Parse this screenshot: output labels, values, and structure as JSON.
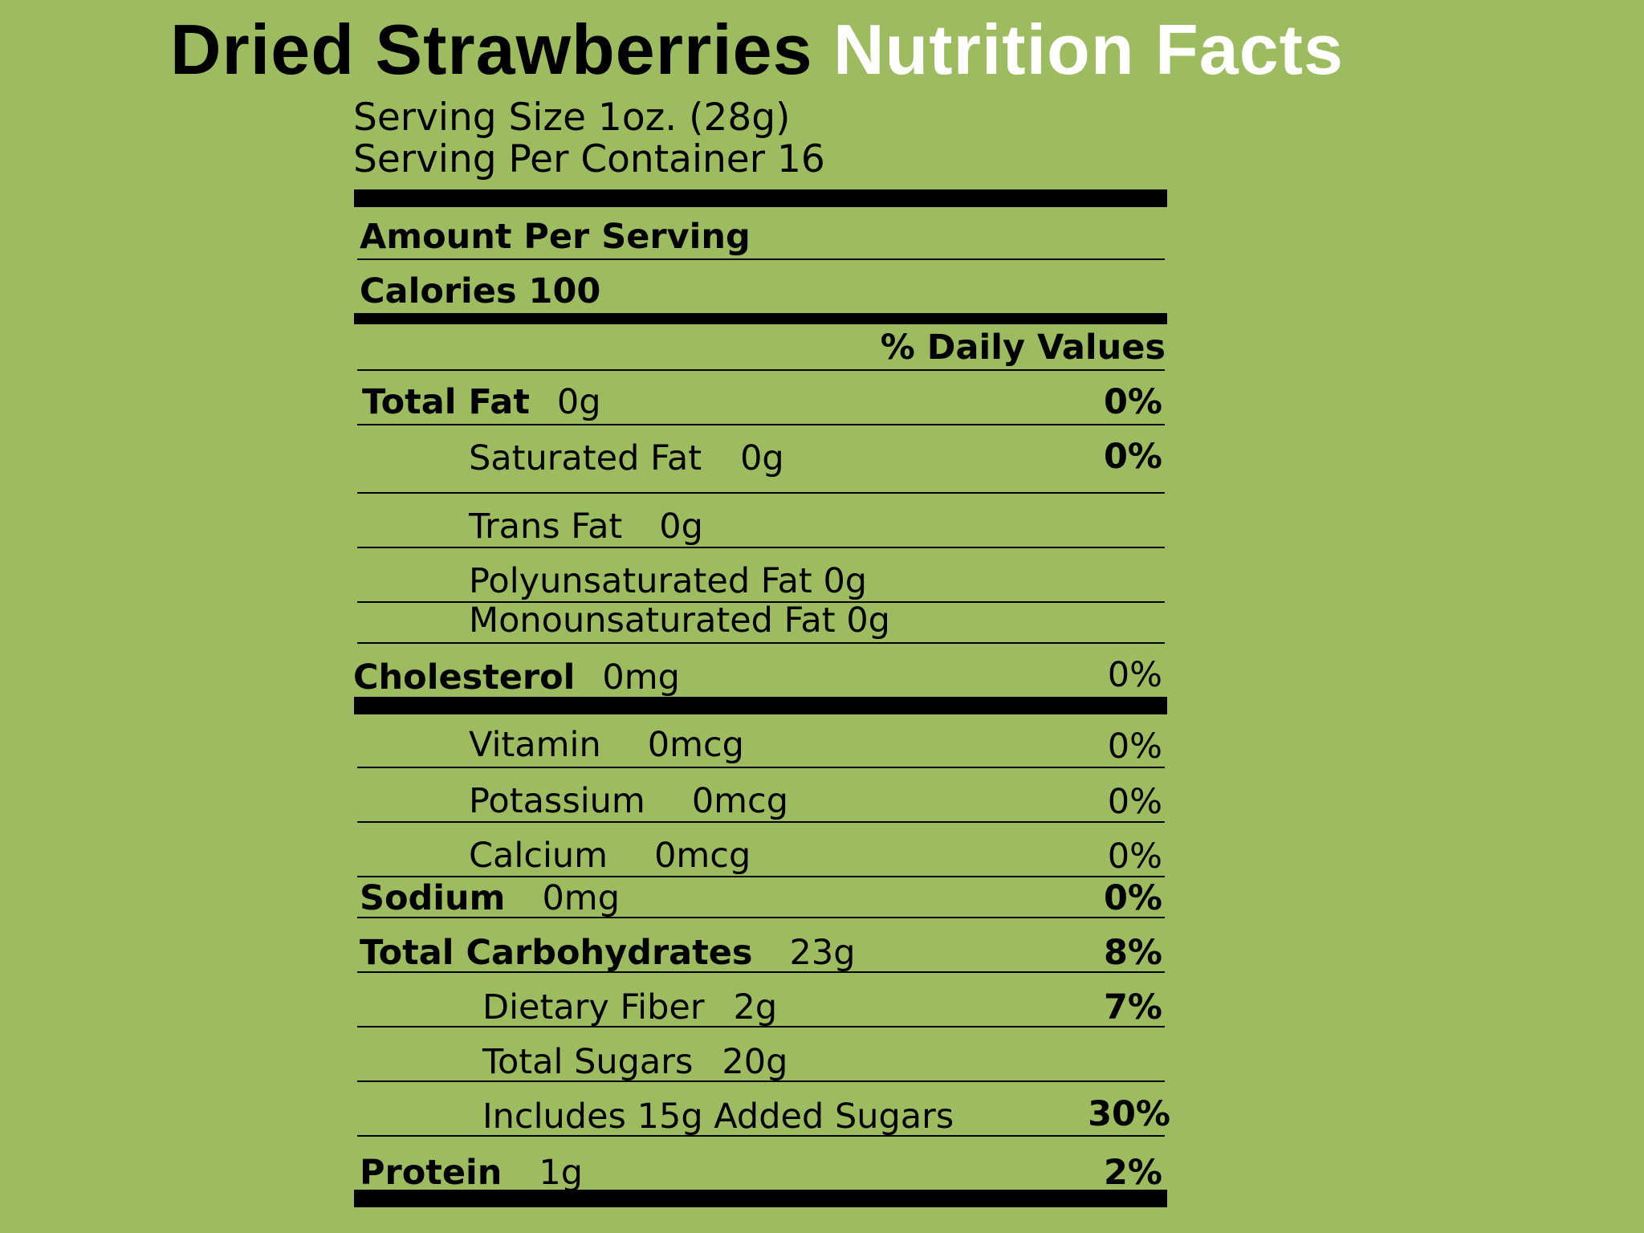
{
  "title": {
    "product": "Dried Strawberries",
    "heading": "Nutrition Facts"
  },
  "serving_size": "Serving Size 1oz. (28g)",
  "servings_per_container": "Serving Per Container 16",
  "amount_per_serving": "Amount Per Serving",
  "calories": "Calories 100",
  "daily_values_header": "% Daily Values",
  "rows": {
    "total_fat": {
      "label": "Total Fat",
      "amount": "0g",
      "dv": "0%"
    },
    "saturated_fat": {
      "label": "Saturated Fat",
      "amount": "0g",
      "dv": "0%"
    },
    "trans_fat": {
      "label": "Trans Fat",
      "amount": "0g"
    },
    "polyunsaturated_fat": {
      "label": "Polyunsaturated Fat 0g"
    },
    "monounsaturated_fat": {
      "label": "Monounsaturated Fat 0g"
    },
    "cholesterol": {
      "label": "Cholesterol",
      "amount": "0mg",
      "dv": "0%"
    },
    "vitamin": {
      "label": "Vitamin",
      "amount": "0mcg",
      "dv": "0%"
    },
    "potassium": {
      "label": "Potassium",
      "amount": "0mcg",
      "dv": "0%"
    },
    "calcium": {
      "label": "Calcium",
      "amount": "0mcg",
      "dv": "0%"
    },
    "sodium": {
      "label": "Sodium",
      "amount": "0mg",
      "dv": "0%"
    },
    "total_carbohydrates": {
      "label": "Total Carbohydrates",
      "amount": "23g",
      "dv": "8%"
    },
    "dietary_fiber": {
      "label": "Dietary Fiber",
      "amount": "2g",
      "dv": "7%"
    },
    "total_sugars": {
      "label": "Total Sugars",
      "amount": "20g"
    },
    "added_sugars": {
      "label": "Includes 15g Added Sugars",
      "dv": "30%"
    },
    "protein": {
      "label": "Protein",
      "amount": "1g",
      "dv": "2%"
    }
  }
}
